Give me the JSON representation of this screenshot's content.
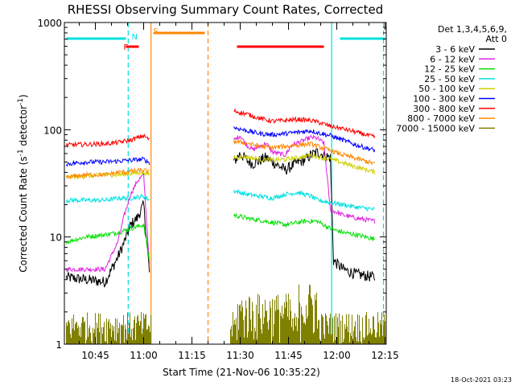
{
  "chart_data": {
    "type": "line",
    "title": "RHESSI Observing Summary Count Rates, Corrected",
    "xlabel": "Start Time (21-Nov-06 10:35:22)",
    "ylabel_main": "Corrected Count Rate (s",
    "ylabel_sup1": "-1",
    "ylabel_mid": " detector",
    "ylabel_sup2": "-1",
    "ylabel_end": ")",
    "yscale": "log",
    "ylim": [
      1,
      1000
    ],
    "xlim_minutes": [
      35.37,
      135.37
    ],
    "y_ticks": [
      {
        "v": 1,
        "label": "1"
      },
      {
        "v": 10,
        "label": "10"
      },
      {
        "v": 100,
        "label": "100"
      },
      {
        "v": 1000,
        "label": "1000"
      }
    ],
    "x_ticks": [
      {
        "m": 45,
        "label": "10:45"
      },
      {
        "m": 60,
        "label": "11:00"
      },
      {
        "m": 75,
        "label": "11:15"
      },
      {
        "m": 90,
        "label": "11:30"
      },
      {
        "m": 105,
        "label": "11:45"
      },
      {
        "m": 120,
        "label": "12:00"
      },
      {
        "m": 135,
        "label": "12:15"
      }
    ],
    "legend_header": [
      "Det 1,3,4,5,6,9,",
      "Att 0"
    ],
    "legend_position": "right",
    "series": [
      {
        "name": "3 - 6 keV",
        "color": "#000000",
        "points": [
          [
            36,
            4.2
          ],
          [
            42,
            4.0
          ],
          [
            48,
            3.8
          ],
          [
            52,
            6.5
          ],
          [
            54,
            9
          ],
          [
            56,
            13
          ],
          [
            58,
            15
          ],
          [
            60,
            20
          ],
          [
            62,
            4.0
          ],
          [
            88,
            50
          ],
          [
            90,
            60
          ],
          [
            92,
            52
          ],
          [
            94,
            48
          ],
          [
            98,
            55
          ],
          [
            102,
            46
          ],
          [
            104,
            42
          ],
          [
            108,
            50
          ],
          [
            110,
            52
          ],
          [
            112,
            58
          ],
          [
            114,
            62
          ],
          [
            116,
            58
          ],
          [
            118,
            55
          ],
          [
            119,
            6
          ],
          [
            122,
            5
          ],
          [
            126,
            4.5
          ],
          [
            132,
            4.2
          ]
        ]
      },
      {
        "name": "6 - 12 keV",
        "color": "#e020e0",
        "points": [
          [
            36,
            5
          ],
          [
            42,
            5
          ],
          [
            48,
            5
          ],
          [
            52,
            9
          ],
          [
            54,
            16
          ],
          [
            56,
            25
          ],
          [
            58,
            33
          ],
          [
            60,
            38
          ],
          [
            62,
            4.5
          ],
          [
            88,
            80
          ],
          [
            90,
            88
          ],
          [
            92,
            72
          ],
          [
            94,
            65
          ],
          [
            98,
            75
          ],
          [
            100,
            62
          ],
          [
            102,
            60
          ],
          [
            104,
            58
          ],
          [
            106,
            72
          ],
          [
            108,
            76
          ],
          [
            110,
            80
          ],
          [
            112,
            85
          ],
          [
            114,
            83
          ],
          [
            116,
            75
          ],
          [
            118,
            18
          ],
          [
            122,
            16
          ],
          [
            126,
            15
          ],
          [
            132,
            14
          ]
        ]
      },
      {
        "name": "12 - 25 keV",
        "color": "#00e000",
        "points": [
          [
            36,
            9
          ],
          [
            42,
            10
          ],
          [
            48,
            10.5
          ],
          [
            52,
            11
          ],
          [
            56,
            12
          ],
          [
            60,
            13
          ],
          [
            62,
            5.5
          ],
          [
            88,
            16
          ],
          [
            92,
            15
          ],
          [
            98,
            14
          ],
          [
            104,
            13
          ],
          [
            110,
            14
          ],
          [
            114,
            14
          ],
          [
            118,
            12
          ],
          [
            122,
            11
          ],
          [
            126,
            10.5
          ],
          [
            132,
            9.5
          ]
        ]
      },
      {
        "name": "25 - 50 keV",
        "color": "#00e0e0",
        "points": [
          [
            36,
            22
          ],
          [
            42,
            22
          ],
          [
            48,
            22
          ],
          [
            52,
            23
          ],
          [
            56,
            23
          ],
          [
            60,
            24
          ],
          [
            62,
            22
          ],
          [
            88,
            27
          ],
          [
            92,
            25
          ],
          [
            96,
            24
          ],
          [
            100,
            23
          ],
          [
            104,
            25
          ],
          [
            108,
            26
          ],
          [
            112,
            24
          ],
          [
            114,
            22
          ],
          [
            118,
            21
          ],
          [
            122,
            20
          ],
          [
            126,
            19
          ],
          [
            132,
            18
          ]
        ]
      },
      {
        "name": "50 - 100 keV",
        "color": "#d0d000",
        "points": [
          [
            36,
            36
          ],
          [
            42,
            37
          ],
          [
            48,
            38
          ],
          [
            52,
            38
          ],
          [
            56,
            39
          ],
          [
            60,
            40
          ],
          [
            62,
            38
          ],
          [
            88,
            55
          ],
          [
            92,
            56
          ],
          [
            96,
            53
          ],
          [
            100,
            52
          ],
          [
            104,
            53
          ],
          [
            108,
            55
          ],
          [
            112,
            58
          ],
          [
            114,
            56
          ],
          [
            118,
            53
          ],
          [
            122,
            49
          ],
          [
            126,
            45
          ],
          [
            132,
            40
          ]
        ]
      },
      {
        "name": "100 - 300 keV",
        "color": "#0000ff",
        "points": [
          [
            36,
            48
          ],
          [
            42,
            50
          ],
          [
            48,
            50
          ],
          [
            52,
            51
          ],
          [
            56,
            52
          ],
          [
            60,
            53
          ],
          [
            62,
            49
          ],
          [
            88,
            105
          ],
          [
            92,
            98
          ],
          [
            96,
            92
          ],
          [
            100,
            90
          ],
          [
            104,
            92
          ],
          [
            108,
            95
          ],
          [
            112,
            98
          ],
          [
            114,
            94
          ],
          [
            118,
            88
          ],
          [
            122,
            80
          ],
          [
            126,
            72
          ],
          [
            132,
            64
          ]
        ]
      },
      {
        "name": "300 - 800 keV",
        "color": "#ff0000",
        "points": [
          [
            36,
            72
          ],
          [
            42,
            73
          ],
          [
            48,
            74
          ],
          [
            52,
            76
          ],
          [
            56,
            80
          ],
          [
            60,
            88
          ],
          [
            62,
            80
          ],
          [
            88,
            150
          ],
          [
            92,
            140
          ],
          [
            96,
            128
          ],
          [
            100,
            120
          ],
          [
            104,
            122
          ],
          [
            108,
            125
          ],
          [
            112,
            122
          ],
          [
            114,
            118
          ],
          [
            118,
            108
          ],
          [
            122,
            102
          ],
          [
            126,
            95
          ],
          [
            132,
            85
          ]
        ]
      },
      {
        "name": "800 - 7000 keV",
        "color": "#ff8800",
        "points": [
          [
            36,
            36
          ],
          [
            42,
            38
          ],
          [
            48,
            38
          ],
          [
            52,
            40
          ],
          [
            56,
            41
          ],
          [
            60,
            42
          ],
          [
            62,
            40
          ],
          [
            88,
            78
          ],
          [
            92,
            75
          ],
          [
            96,
            70
          ],
          [
            100,
            68
          ],
          [
            104,
            70
          ],
          [
            108,
            72
          ],
          [
            112,
            74
          ],
          [
            114,
            70
          ],
          [
            118,
            64
          ],
          [
            122,
            58
          ],
          [
            126,
            54
          ],
          [
            132,
            48
          ]
        ]
      },
      {
        "name": "7000 - 15000 keV",
        "color": "#808000",
        "points": []
      }
    ],
    "annotations": [
      {
        "text": "N",
        "minute": 55.5,
        "color": "#00e0e0"
      },
      {
        "text": "F",
        "minute": 53.0,
        "color": "#ff0000"
      },
      {
        "text": "S",
        "minute": 62.2,
        "color": "#ff8800"
      }
    ],
    "bars": [
      {
        "label": "cyan",
        "color": "#00e0e0",
        "segments": [
          [
            36,
            54.5
          ],
          [
            121,
            135
          ]
        ]
      },
      {
        "label": "orange",
        "color": "#ff8800",
        "segments": [
          [
            63,
            79
          ]
        ]
      },
      {
        "label": "red",
        "color": "#ff0000",
        "segments": [
          [
            54.5,
            58.5
          ],
          [
            89,
            116
          ]
        ]
      }
    ],
    "markers": [
      {
        "minute": 55.2,
        "color": "#00e0e0",
        "style": "dashed"
      },
      {
        "minute": 62.3,
        "color": "#ff8800",
        "style": "solid"
      },
      {
        "minute": 80.0,
        "color": "#ff8800",
        "style": "dashed"
      },
      {
        "minute": 118.4,
        "color": "#00e0e0",
        "style": "solid"
      },
      {
        "minute": 134.5,
        "color": "#00e0e0",
        "style": "dashed"
      }
    ],
    "gaps_minutes": [
      [
        62.5,
        86.5
      ]
    ]
  },
  "footer_stamp": "18-Oct-2021 03:23"
}
